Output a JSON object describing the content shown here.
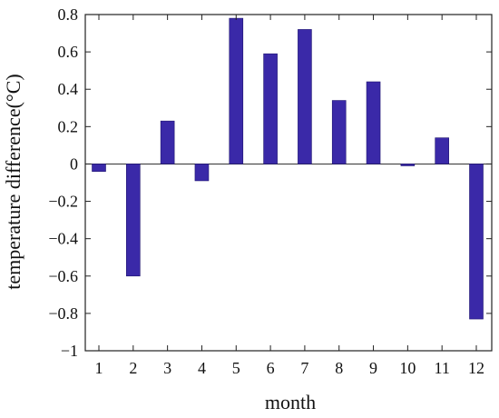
{
  "chart_data": {
    "type": "bar",
    "xlabel": "month",
    "ylabel": "temperature difference(°C)",
    "categories": [
      "1",
      "2",
      "3",
      "4",
      "5",
      "6",
      "7",
      "8",
      "9",
      "10",
      "11",
      "12"
    ],
    "values": [
      -0.04,
      -0.6,
      0.23,
      -0.09,
      0.78,
      0.59,
      0.72,
      0.34,
      0.44,
      -0.01,
      0.14,
      -0.83
    ],
    "ylim": [
      -1,
      0.8
    ],
    "yticks": [
      0.8,
      0.6,
      0.4,
      0.2,
      0,
      -0.2,
      -0.4,
      -0.6,
      -0.8,
      -1
    ],
    "ytick_labels": [
      "0.8",
      "0.6",
      "0.4",
      "0.2",
      "0",
      "−0.2",
      "−0.4",
      "−0.6",
      "−0.8",
      "−1"
    ],
    "bar_color": "#3a29a8",
    "grid": false,
    "legend": "none"
  }
}
